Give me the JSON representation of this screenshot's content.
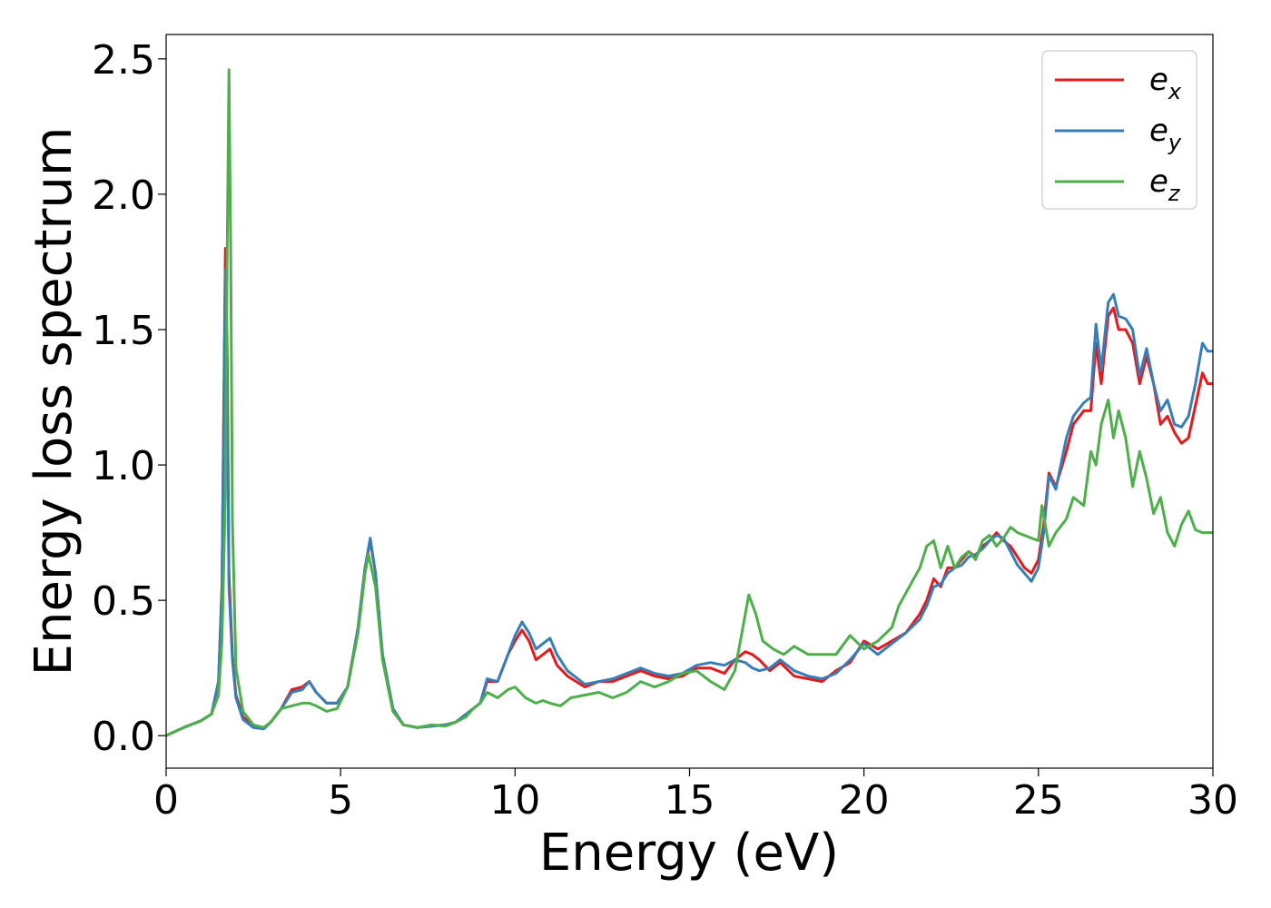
{
  "chart_data": {
    "type": "line",
    "title": "",
    "xlabel": "Energy (eV)",
    "ylabel": "Energy loss spectrum",
    "xlim": [
      0,
      30
    ],
    "ylim": [
      -0.12,
      2.59
    ],
    "xticks": [
      0,
      5,
      10,
      15,
      20,
      25,
      30
    ],
    "xtick_labels": [
      "0",
      "5",
      "10",
      "15",
      "20",
      "25",
      "30"
    ],
    "yticks": [
      0.0,
      0.5,
      1.0,
      1.5,
      2.0,
      2.5
    ],
    "ytick_labels": [
      "0.0",
      "0.5",
      "1.0",
      "1.5",
      "2.0",
      "2.5"
    ],
    "grid": false,
    "legend_position": "top-right",
    "series": [
      {
        "name": "e",
        "subscript": "x",
        "color": "#e41a1c",
        "x": [
          0,
          0.5,
          1.0,
          1.3,
          1.5,
          1.6,
          1.65,
          1.7,
          1.75,
          1.8,
          1.9,
          2.0,
          2.2,
          2.5,
          2.8,
          3.0,
          3.3,
          3.6,
          3.9,
          4.1,
          4.3,
          4.6,
          4.9,
          5.2,
          5.5,
          5.7,
          5.85,
          6.0,
          6.2,
          6.5,
          6.8,
          7.2,
          7.6,
          8.0,
          8.3,
          8.6,
          8.8,
          9.0,
          9.2,
          9.5,
          9.8,
          10.0,
          10.2,
          10.4,
          10.6,
          10.8,
          11.0,
          11.2,
          11.5,
          12.0,
          12.4,
          12.8,
          13.2,
          13.6,
          14.0,
          14.4,
          14.8,
          15.2,
          15.6,
          16.0,
          16.3,
          16.6,
          16.8,
          17.0,
          17.3,
          17.6,
          18.0,
          18.4,
          18.8,
          19.2,
          19.6,
          20.0,
          20.4,
          20.8,
          21.2,
          21.6,
          21.8,
          22.0,
          22.2,
          22.4,
          22.6,
          22.8,
          23.0,
          23.2,
          23.4,
          23.6,
          23.8,
          24.0,
          24.2,
          24.4,
          24.6,
          24.8,
          25.0,
          25.15,
          25.3,
          25.5,
          25.8,
          26.0,
          26.3,
          26.5,
          26.65,
          26.8,
          27.0,
          27.15,
          27.3,
          27.5,
          27.7,
          27.9,
          28.1,
          28.3,
          28.5,
          28.7,
          28.9,
          29.1,
          29.3,
          29.5,
          29.7,
          29.85,
          30.0
        ],
        "y": [
          0.0,
          0.03,
          0.055,
          0.08,
          0.2,
          0.55,
          1.2,
          1.8,
          1.4,
          0.6,
          0.3,
          0.15,
          0.07,
          0.035,
          0.03,
          0.05,
          0.1,
          0.17,
          0.18,
          0.2,
          0.16,
          0.12,
          0.12,
          0.18,
          0.4,
          0.62,
          0.72,
          0.6,
          0.3,
          0.1,
          0.04,
          0.03,
          0.035,
          0.04,
          0.05,
          0.08,
          0.1,
          0.12,
          0.2,
          0.2,
          0.3,
          0.35,
          0.39,
          0.35,
          0.28,
          0.3,
          0.32,
          0.26,
          0.22,
          0.18,
          0.2,
          0.2,
          0.22,
          0.24,
          0.22,
          0.21,
          0.22,
          0.25,
          0.25,
          0.23,
          0.28,
          0.31,
          0.3,
          0.28,
          0.24,
          0.27,
          0.22,
          0.21,
          0.2,
          0.24,
          0.27,
          0.35,
          0.32,
          0.35,
          0.38,
          0.45,
          0.5,
          0.58,
          0.55,
          0.62,
          0.62,
          0.65,
          0.68,
          0.66,
          0.7,
          0.72,
          0.75,
          0.72,
          0.7,
          0.66,
          0.62,
          0.6,
          0.65,
          0.78,
          0.97,
          0.92,
          1.05,
          1.15,
          1.2,
          1.2,
          1.45,
          1.3,
          1.55,
          1.58,
          1.5,
          1.5,
          1.45,
          1.3,
          1.4,
          1.3,
          1.15,
          1.18,
          1.12,
          1.08,
          1.1,
          1.22,
          1.34,
          1.3,
          1.3
        ]
      },
      {
        "name": "e",
        "subscript": "y",
        "color": "#377eb8",
        "x": [
          0,
          0.5,
          1.0,
          1.3,
          1.5,
          1.6,
          1.65,
          1.7,
          1.75,
          1.8,
          1.9,
          2.0,
          2.2,
          2.5,
          2.8,
          3.0,
          3.3,
          3.6,
          3.9,
          4.1,
          4.3,
          4.6,
          4.9,
          5.2,
          5.5,
          5.7,
          5.85,
          6.0,
          6.2,
          6.5,
          6.8,
          7.2,
          7.6,
          8.0,
          8.3,
          8.6,
          8.8,
          9.0,
          9.2,
          9.5,
          9.8,
          10.0,
          10.2,
          10.4,
          10.6,
          10.8,
          11.0,
          11.2,
          11.5,
          12.0,
          12.4,
          12.8,
          13.2,
          13.6,
          14.0,
          14.4,
          14.8,
          15.2,
          15.6,
          16.0,
          16.3,
          16.6,
          16.8,
          17.0,
          17.3,
          17.6,
          18.0,
          18.4,
          18.8,
          19.2,
          19.6,
          20.0,
          20.4,
          20.8,
          21.2,
          21.6,
          21.8,
          22.0,
          22.2,
          22.4,
          22.6,
          22.8,
          23.0,
          23.2,
          23.4,
          23.6,
          23.8,
          24.0,
          24.2,
          24.4,
          24.6,
          24.8,
          25.0,
          25.15,
          25.3,
          25.5,
          25.8,
          26.0,
          26.3,
          26.5,
          26.65,
          26.8,
          27.0,
          27.15,
          27.3,
          27.5,
          27.7,
          27.9,
          28.1,
          28.3,
          28.5,
          28.7,
          28.9,
          29.1,
          29.3,
          29.5,
          29.7,
          29.85,
          30.0
        ],
        "y": [
          0.0,
          0.03,
          0.055,
          0.08,
          0.2,
          0.55,
          1.15,
          1.72,
          1.3,
          0.55,
          0.28,
          0.14,
          0.06,
          0.03,
          0.025,
          0.05,
          0.1,
          0.16,
          0.17,
          0.2,
          0.16,
          0.12,
          0.12,
          0.18,
          0.4,
          0.62,
          0.73,
          0.6,
          0.3,
          0.1,
          0.04,
          0.03,
          0.035,
          0.04,
          0.05,
          0.08,
          0.1,
          0.12,
          0.21,
          0.2,
          0.3,
          0.37,
          0.42,
          0.38,
          0.32,
          0.34,
          0.36,
          0.3,
          0.24,
          0.19,
          0.2,
          0.21,
          0.23,
          0.25,
          0.23,
          0.22,
          0.23,
          0.26,
          0.27,
          0.26,
          0.28,
          0.27,
          0.25,
          0.24,
          0.25,
          0.28,
          0.24,
          0.22,
          0.21,
          0.23,
          0.28,
          0.34,
          0.3,
          0.34,
          0.38,
          0.43,
          0.48,
          0.55,
          0.56,
          0.6,
          0.62,
          0.63,
          0.66,
          0.67,
          0.69,
          0.72,
          0.74,
          0.73,
          0.68,
          0.63,
          0.6,
          0.57,
          0.62,
          0.75,
          0.96,
          0.91,
          1.1,
          1.18,
          1.23,
          1.25,
          1.52,
          1.35,
          1.6,
          1.63,
          1.55,
          1.54,
          1.5,
          1.33,
          1.43,
          1.3,
          1.2,
          1.24,
          1.15,
          1.14,
          1.18,
          1.3,
          1.45,
          1.42,
          1.42
        ]
      },
      {
        "name": "e",
        "subscript": "z",
        "color": "#4daf4a",
        "x": [
          0,
          0.5,
          1.0,
          1.3,
          1.5,
          1.6,
          1.7,
          1.75,
          1.8,
          1.85,
          1.9,
          2.0,
          2.2,
          2.5,
          2.8,
          3.0,
          3.3,
          3.6,
          3.9,
          4.1,
          4.3,
          4.6,
          4.9,
          5.2,
          5.5,
          5.7,
          5.8,
          6.0,
          6.2,
          6.5,
          6.8,
          7.2,
          7.6,
          8.0,
          8.3,
          8.6,
          8.8,
          9.0,
          9.2,
          9.5,
          9.8,
          10.0,
          10.3,
          10.6,
          10.8,
          11.0,
          11.3,
          11.6,
          12.0,
          12.4,
          12.8,
          13.2,
          13.6,
          14.0,
          14.4,
          14.8,
          15.2,
          15.6,
          16.0,
          16.3,
          16.5,
          16.7,
          16.9,
          17.1,
          17.4,
          17.7,
          18.0,
          18.4,
          18.8,
          19.2,
          19.6,
          20.0,
          20.4,
          20.8,
          21.0,
          21.3,
          21.6,
          21.8,
          22.0,
          22.2,
          22.4,
          22.6,
          22.8,
          23.0,
          23.2,
          23.4,
          23.6,
          23.8,
          24.0,
          24.2,
          24.4,
          24.6,
          24.8,
          25.0,
          25.1,
          25.3,
          25.5,
          25.8,
          26.0,
          26.3,
          26.5,
          26.65,
          26.8,
          27.0,
          27.15,
          27.3,
          27.5,
          27.7,
          27.9,
          28.1,
          28.3,
          28.5,
          28.7,
          28.9,
          29.1,
          29.3,
          29.5,
          29.7,
          29.85,
          30.0
        ],
        "y": [
          0.0,
          0.03,
          0.055,
          0.08,
          0.15,
          0.35,
          0.9,
          1.8,
          2.46,
          1.8,
          0.8,
          0.25,
          0.09,
          0.04,
          0.03,
          0.05,
          0.1,
          0.11,
          0.12,
          0.12,
          0.11,
          0.09,
          0.1,
          0.18,
          0.38,
          0.6,
          0.67,
          0.55,
          0.28,
          0.09,
          0.04,
          0.03,
          0.04,
          0.035,
          0.05,
          0.07,
          0.1,
          0.12,
          0.16,
          0.14,
          0.17,
          0.18,
          0.14,
          0.12,
          0.13,
          0.12,
          0.11,
          0.14,
          0.15,
          0.16,
          0.14,
          0.16,
          0.2,
          0.18,
          0.2,
          0.23,
          0.24,
          0.2,
          0.17,
          0.24,
          0.38,
          0.52,
          0.45,
          0.35,
          0.32,
          0.3,
          0.33,
          0.3,
          0.3,
          0.3,
          0.37,
          0.32,
          0.35,
          0.4,
          0.48,
          0.55,
          0.62,
          0.7,
          0.72,
          0.62,
          0.7,
          0.62,
          0.66,
          0.68,
          0.65,
          0.72,
          0.74,
          0.7,
          0.73,
          0.77,
          0.75,
          0.74,
          0.73,
          0.72,
          0.85,
          0.7,
          0.75,
          0.8,
          0.88,
          0.85,
          1.05,
          1.0,
          1.15,
          1.24,
          1.1,
          1.2,
          1.1,
          0.92,
          1.05,
          0.95,
          0.82,
          0.88,
          0.75,
          0.7,
          0.78,
          0.83,
          0.76,
          0.75,
          0.75,
          0.75
        ]
      }
    ]
  }
}
